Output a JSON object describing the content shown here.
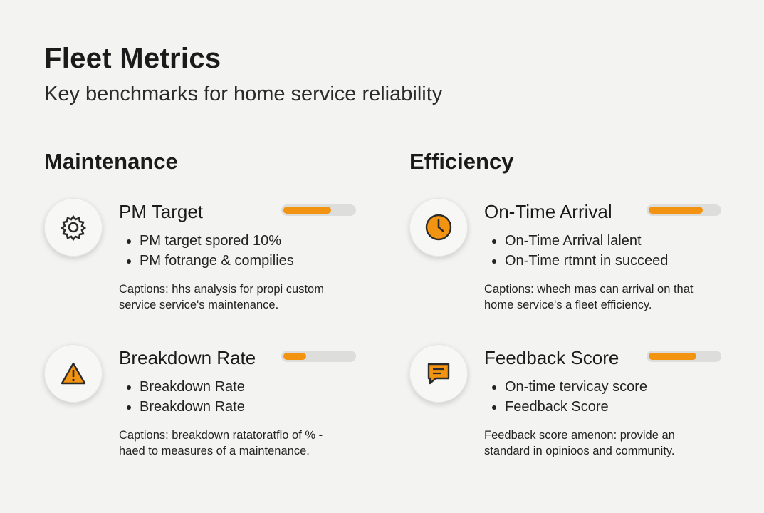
{
  "header": {
    "title": "Fleet Metrics",
    "subtitle": "Key benchmarks for home service reliability"
  },
  "sections": [
    {
      "title": "Maintenance",
      "cards": [
        {
          "title": "PM Target",
          "progress": 68,
          "bullets": [
            "PM target spored 10%",
            "PM fotrange & compilies"
          ],
          "caption": [
            "Captions: hhs analysis for propi custom",
            "service service's maintenance."
          ]
        },
        {
          "title": "Breakdown Rate",
          "progress": 32,
          "bullets": [
            "Breakdown Rate",
            "Breakdown Rate"
          ],
          "caption": [
            "Captions: breakdown ratatoratflo of % -",
            "haed to measures of a maintenance."
          ]
        }
      ]
    },
    {
      "title": "Efficiency",
      "cards": [
        {
          "title": "On-Time Arrival",
          "progress": 77,
          "bullets": [
            "On-Time Arrival lalent",
            "On-Time rtmnt in succeed"
          ],
          "caption": [
            "Captions: whech mas can arrival on that",
            "home service's a fleet efficiency."
          ]
        },
        {
          "title": "Feedback Score",
          "progress": 68,
          "bullets": [
            "On-time tervicay score",
            "Feedback Score"
          ],
          "caption": [
            "Feedback score amenon: provide an",
            "standard in opinioos and community."
          ]
        }
      ]
    }
  ]
}
